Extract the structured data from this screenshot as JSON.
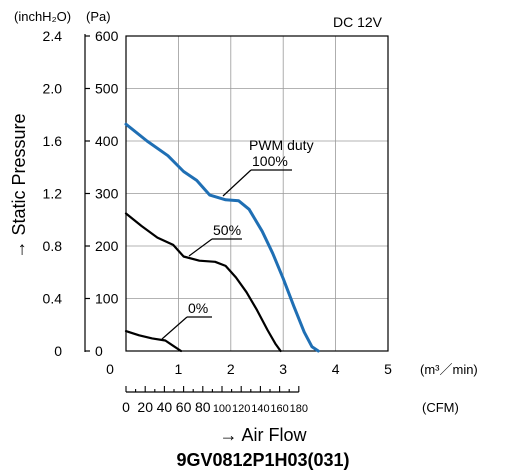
{
  "chart_data": {
    "type": "line",
    "title": "9GV0812P1H03(031)",
    "xlabel": "→ Air Flow",
    "ylabel": "→ Static Pressure",
    "annotation": "DC 12V",
    "legend_title": "PWM duty",
    "x_units": "(m³／min)",
    "x2_units": "(CFM)",
    "y_units": "(Pa)",
    "y2_units": "(inchH₂O)",
    "xlim": [
      0,
      5
    ],
    "ylim": [
      0,
      600
    ],
    "x_ticks": [
      "0",
      "1",
      "2",
      "3",
      "4",
      "5"
    ],
    "y_ticks": [
      "0",
      "100",
      "200",
      "300",
      "400",
      "500",
      "600"
    ],
    "y2_ticks": [
      "0",
      "0.4",
      "0.8",
      "1.2",
      "1.6",
      "2.0",
      "2.4"
    ],
    "x2_ticks": [
      "0",
      "20",
      "40",
      "60",
      "80",
      "100",
      "120",
      "140",
      "160",
      "180"
    ],
    "grid": true,
    "series": [
      {
        "name": "100%",
        "color": "#1f6fb4",
        "x": [
          0,
          0.4,
          0.8,
          1.1,
          1.35,
          1.6,
          1.9,
          2.15,
          2.35,
          2.6,
          2.8,
          3.0,
          3.2,
          3.4,
          3.55,
          3.67
        ],
        "y": [
          432,
          400,
          372,
          342,
          325,
          297,
          288,
          286,
          270,
          228,
          186,
          138,
          86,
          36,
          8,
          0
        ]
      },
      {
        "name": "50%",
        "color": "#000000",
        "x": [
          0,
          0.3,
          0.6,
          0.9,
          1.1,
          1.4,
          1.7,
          1.9,
          2.1,
          2.3,
          2.5,
          2.7,
          2.85,
          2.95
        ],
        "y": [
          262,
          238,
          216,
          202,
          180,
          172,
          170,
          162,
          140,
          112,
          78,
          40,
          14,
          0
        ]
      },
      {
        "name": "0%",
        "color": "#000000",
        "x": [
          0,
          0.25,
          0.5,
          0.75,
          0.9,
          1.05
        ],
        "y": [
          38,
          30,
          24,
          20,
          10,
          0
        ]
      }
    ]
  }
}
